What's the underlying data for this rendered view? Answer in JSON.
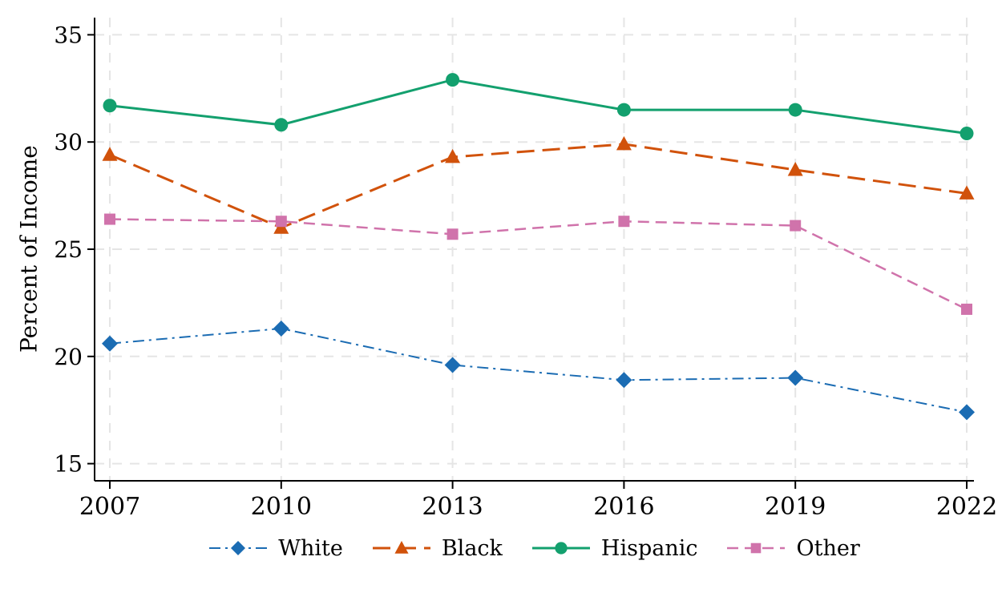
{
  "chart_data": {
    "type": "line",
    "title": "",
    "xlabel": "",
    "ylabel": "Percent of Income",
    "x": [
      "2007",
      "2010",
      "2013",
      "2016",
      "2019",
      "2022"
    ],
    "yticks": [
      15,
      20,
      25,
      30,
      35
    ],
    "ylim": [
      14.2,
      35.8
    ],
    "grid": true,
    "grid_color": "#e5e5e5",
    "axis_color": "#000000",
    "text_color": "#000000",
    "legend_position": "bottom-center",
    "series": [
      {
        "name": "White",
        "color": "#1b6cb3",
        "marker": "diamond",
        "line_style": "dash-dot",
        "line_width": 2,
        "values": [
          20.6,
          21.3,
          19.6,
          18.9,
          19.0,
          17.4
        ]
      },
      {
        "name": "Black",
        "color": "#d1520b",
        "marker": "triangle",
        "line_style": "long-dash",
        "line_width": 3,
        "values": [
          29.4,
          26.0,
          29.3,
          29.9,
          28.7,
          27.6
        ]
      },
      {
        "name": "Hispanic",
        "color": "#13a06e",
        "marker": "circle",
        "line_style": "solid",
        "line_width": 3,
        "values": [
          31.7,
          30.8,
          32.9,
          31.5,
          31.5,
          30.4
        ]
      },
      {
        "name": "Other",
        "color": "#d073ab",
        "marker": "square",
        "line_style": "dash",
        "line_width": 2.5,
        "values": [
          26.4,
          26.3,
          25.7,
          26.3,
          26.1,
          22.2
        ]
      }
    ]
  }
}
